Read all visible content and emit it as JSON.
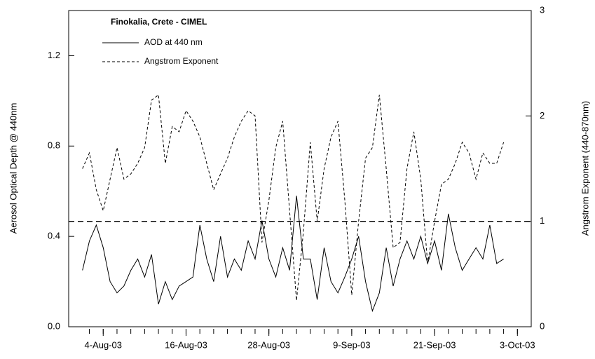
{
  "chart_data": {
    "type": "line",
    "ylabel": "Aerosol Optical Depth @ 440nm",
    "y2label": "Angstrom Exponent (440-870nm)",
    "legend_title": "Finokalia, Crete - CIMEL",
    "legend": "upper left",
    "x": [
      "2003-08-01",
      "2003-08-02",
      "2003-08-03",
      "2003-08-04",
      "2003-08-05",
      "2003-08-06",
      "2003-08-07",
      "2003-08-08",
      "2003-08-09",
      "2003-08-10",
      "2003-08-11",
      "2003-08-12",
      "2003-08-13",
      "2003-08-14",
      "2003-08-15",
      "2003-08-16",
      "2003-08-17",
      "2003-08-18",
      "2003-08-19",
      "2003-08-20",
      "2003-08-21",
      "2003-08-22",
      "2003-08-23",
      "2003-08-24",
      "2003-08-25",
      "2003-08-26",
      "2003-08-27",
      "2003-08-28",
      "2003-08-29",
      "2003-08-30",
      "2003-08-31",
      "2003-09-01",
      "2003-09-02",
      "2003-09-03",
      "2003-09-04",
      "2003-09-05",
      "2003-09-06",
      "2003-09-07",
      "2003-09-08",
      "2003-09-09",
      "2003-09-10",
      "2003-09-11",
      "2003-09-12",
      "2003-09-13",
      "2003-09-14",
      "2003-09-15",
      "2003-09-16",
      "2003-09-17",
      "2003-09-18",
      "2003-09-19",
      "2003-09-20",
      "2003-09-21",
      "2003-09-22",
      "2003-09-23",
      "2003-09-24",
      "2003-09-25",
      "2003-09-26",
      "2003-09-27",
      "2003-09-28",
      "2003-09-29",
      "2003-09-30",
      "2003-10-01"
    ],
    "series": [
      {
        "name": "AOD at 440 nm",
        "color": "#000000",
        "dash": "solid",
        "values": [
          0.25,
          0.38,
          0.45,
          0.35,
          0.2,
          0.15,
          0.18,
          0.25,
          0.3,
          0.22,
          0.32,
          0.1,
          0.2,
          0.12,
          0.18,
          0.2,
          0.22,
          0.45,
          0.3,
          0.2,
          0.4,
          0.22,
          0.3,
          0.25,
          0.38,
          0.3,
          0.47,
          0.3,
          0.22,
          0.35,
          0.25,
          0.58,
          0.3,
          0.3,
          0.12,
          0.35,
          0.2,
          0.15,
          0.22,
          0.3,
          0.4,
          0.2,
          0.07,
          0.15,
          0.35,
          0.18,
          0.3,
          0.38,
          0.3,
          0.4,
          0.28,
          0.38,
          0.25,
          0.5,
          0.35,
          0.25,
          0.3,
          0.35,
          0.3,
          0.45,
          0.28,
          0.3
        ]
      },
      {
        "name": "Angstrom Exponent",
        "color": "#000000",
        "dash": "dashed",
        "axis": "y2",
        "values": [
          1.5,
          1.65,
          1.3,
          1.1,
          1.4,
          1.7,
          1.4,
          1.45,
          1.55,
          1.7,
          2.15,
          2.2,
          1.55,
          1.9,
          1.85,
          2.05,
          1.95,
          1.8,
          1.55,
          1.3,
          1.45,
          1.6,
          1.8,
          1.95,
          2.05,
          2.0,
          0.8,
          1.2,
          1.7,
          1.95,
          1.1,
          0.25,
          0.9,
          1.75,
          1.0,
          1.5,
          1.8,
          1.95,
          1.2,
          0.3,
          1.0,
          1.6,
          1.7,
          2.2,
          1.5,
          0.75,
          0.8,
          1.5,
          1.85,
          1.4,
          0.6,
          1.0,
          1.35,
          1.4,
          1.55,
          1.75,
          1.65,
          1.4,
          1.65,
          1.55,
          1.55,
          1.75
        ]
      }
    ],
    "reference_line": {
      "value": 1,
      "axis": "y2"
    },
    "xlim": [
      "2003-07-30",
      "2003-10-05"
    ],
    "xticks": [
      {
        "value": "2003-08-04",
        "label": "4-Aug-03"
      },
      {
        "value": "2003-08-16",
        "label": "16-Aug-03"
      },
      {
        "value": "2003-08-28",
        "label": "28-Aug-03"
      },
      {
        "value": "2003-09-09",
        "label": "9-Sep-03"
      },
      {
        "value": "2003-09-21",
        "label": "21-Sep-03"
      },
      {
        "value": "2003-10-03",
        "label": "3-Oct-03"
      }
    ],
    "xminorticks": [
      "2003-08-02",
      "2003-08-04",
      "2003-08-06",
      "2003-08-08",
      "2003-08-10",
      "2003-08-12",
      "2003-08-14",
      "2003-08-16",
      "2003-08-18",
      "2003-08-20",
      "2003-08-22",
      "2003-08-24",
      "2003-08-26",
      "2003-08-28",
      "2003-08-30",
      "2003-09-01",
      "2003-09-03",
      "2003-09-05",
      "2003-09-07",
      "2003-09-09",
      "2003-09-11",
      "2003-09-13",
      "2003-09-15",
      "2003-09-17",
      "2003-09-19",
      "2003-09-21",
      "2003-09-23",
      "2003-09-25",
      "2003-09-27",
      "2003-09-29",
      "2003-10-01",
      "2003-10-03"
    ],
    "ylim": [
      0,
      1.4
    ],
    "yticks": [
      {
        "value": 0,
        "label": "0.0"
      },
      0.4,
      0.8,
      1.2
    ],
    "y2lim": [
      0,
      3
    ],
    "y2ticks": [
      0,
      1,
      2,
      3
    ]
  }
}
